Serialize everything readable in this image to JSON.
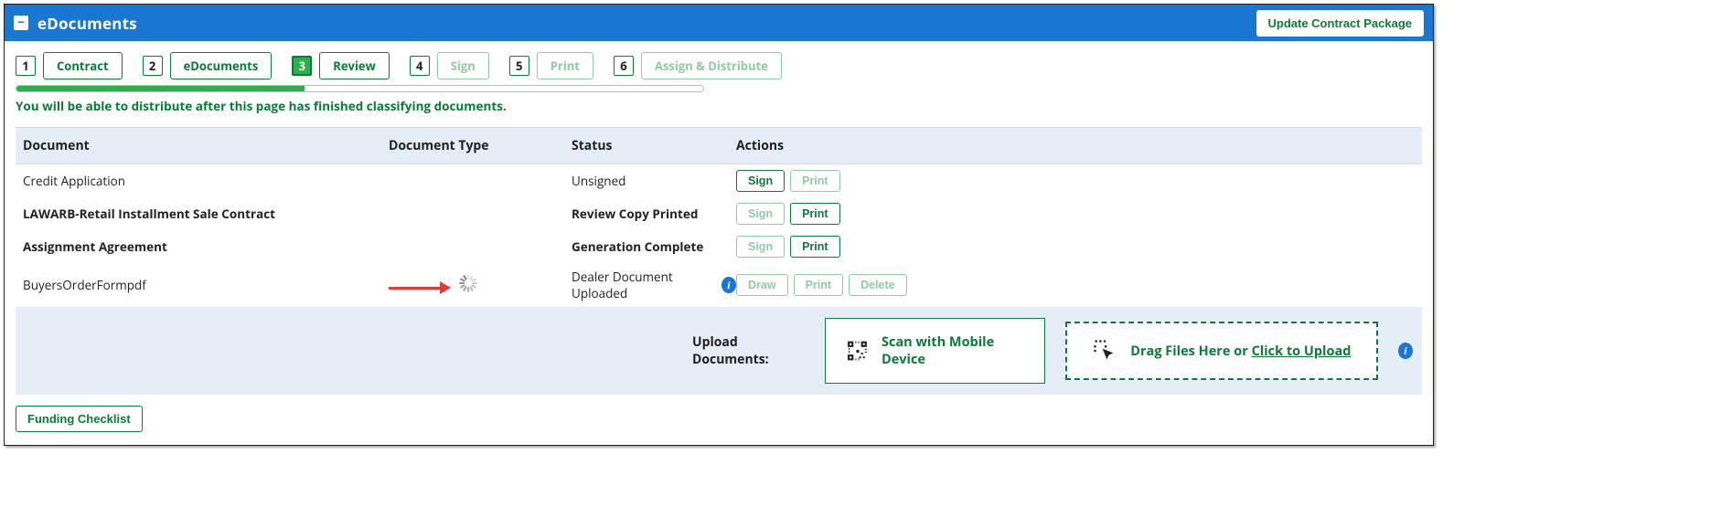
{
  "panel": {
    "title": "eDocuments",
    "update_button": "Update Contract Package"
  },
  "steps": [
    {
      "num": "1",
      "label": "Contract",
      "active": false,
      "faded": false
    },
    {
      "num": "2",
      "label": "eDocuments",
      "active": false,
      "faded": false
    },
    {
      "num": "3",
      "label": "Review",
      "active": true,
      "faded": false
    },
    {
      "num": "4",
      "label": "Sign",
      "active": false,
      "faded": true
    },
    {
      "num": "5",
      "label": "Print",
      "active": false,
      "faded": true
    },
    {
      "num": "6",
      "label": "Assign & Distribute",
      "active": false,
      "faded": true
    }
  ],
  "progress_percent": 42,
  "status_message": "You will be able to distribute after this page has finished classifying documents.",
  "columns": {
    "c1": "Document",
    "c2": "Document Type",
    "c3": "Status",
    "c4": "Actions"
  },
  "rows": [
    {
      "name": "Credit Application",
      "bold": false,
      "type": "",
      "status": "Unsigned",
      "info": false,
      "spinner": false,
      "actions": [
        {
          "label": "Sign",
          "style": "primary"
        },
        {
          "label": "Print",
          "style": "disabled"
        }
      ]
    },
    {
      "name": "LAWARB-Retail Installment Sale Contract",
      "bold": true,
      "type": "",
      "status": "Review Copy Printed",
      "info": false,
      "spinner": false,
      "actions": [
        {
          "label": "Sign",
          "style": "disabled"
        },
        {
          "label": "Print",
          "style": "primary"
        }
      ]
    },
    {
      "name": "Assignment Agreement",
      "bold": true,
      "type": "",
      "status": "Generation Complete",
      "info": false,
      "spinner": false,
      "actions": [
        {
          "label": "Sign",
          "style": "disabled"
        },
        {
          "label": "Print",
          "style": "primary"
        }
      ]
    },
    {
      "name": "BuyersOrderFormpdf",
      "bold": false,
      "type": "",
      "status": "Dealer Document Uploaded",
      "info": true,
      "spinner": true,
      "actions": [
        {
          "label": "Draw",
          "style": "disabled"
        },
        {
          "label": "Print",
          "style": "disabled"
        },
        {
          "label": "Delete",
          "style": "disabled"
        }
      ]
    }
  ],
  "upload": {
    "label": "Upload Documents:",
    "scan": "Scan with Mobile Device",
    "drag_prefix": "Drag Files Here or ",
    "drag_link": "Click to Upload"
  },
  "footer": {
    "funding_checklist": "Funding Checklist"
  },
  "colors": {
    "header_bg": "#1976d2",
    "green": "#0b7a3b",
    "green_light": "#2bb14c",
    "green_faded": "#8fcaa6",
    "row_alt_bg": "#e5eef6",
    "arrow": "#e53935"
  }
}
